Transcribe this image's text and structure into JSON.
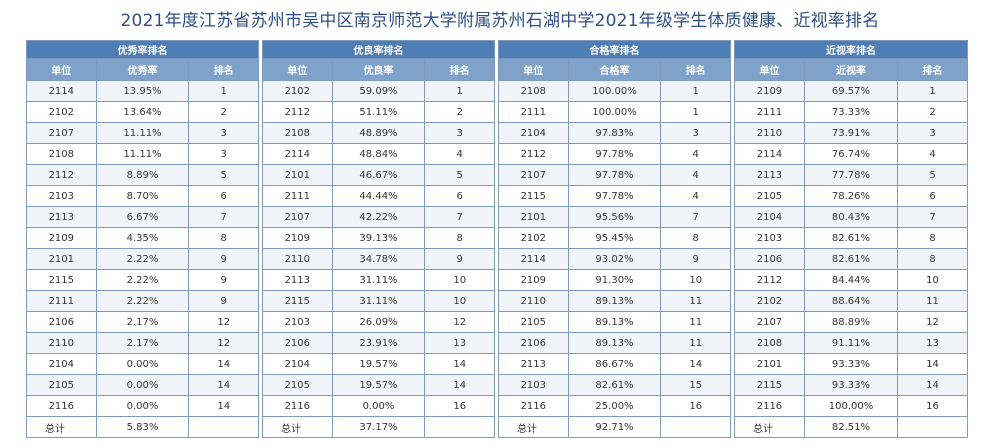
{
  "page_title": "2021年度江苏省苏州市吴中区南京师范大学附属苏州石湖中学2021年级学生体质健康、近视率排名",
  "tables": [
    {
      "title": "优秀率排名",
      "columns": [
        "单位",
        "优秀率",
        "排名"
      ],
      "rows": [
        [
          "2114",
          "13.95%",
          "1"
        ],
        [
          "2102",
          "13.64%",
          "2"
        ],
        [
          "2107",
          "11.11%",
          "3"
        ],
        [
          "2108",
          "11.11%",
          "3"
        ],
        [
          "2112",
          "8.89%",
          "5"
        ],
        [
          "2103",
          "8.70%",
          "6"
        ],
        [
          "2113",
          "6.67%",
          "7"
        ],
        [
          "2109",
          "4.35%",
          "8"
        ],
        [
          "2101",
          "2.22%",
          "9"
        ],
        [
          "2115",
          "2.22%",
          "9"
        ],
        [
          "2111",
          "2.22%",
          "9"
        ],
        [
          "2106",
          "2.17%",
          "12"
        ],
        [
          "2110",
          "2.17%",
          "12"
        ],
        [
          "2104",
          "0.00%",
          "14"
        ],
        [
          "2105",
          "0.00%",
          "14"
        ],
        [
          "2116",
          "0.00%",
          "14"
        ]
      ],
      "total": [
        "总计",
        "5.83%",
        ""
      ]
    },
    {
      "title": "优良率排名",
      "columns": [
        "单位",
        "优良率",
        "排名"
      ],
      "rows": [
        [
          "2102",
          "59.09%",
          "1"
        ],
        [
          "2112",
          "51.11%",
          "2"
        ],
        [
          "2108",
          "48.89%",
          "3"
        ],
        [
          "2114",
          "48.84%",
          "4"
        ],
        [
          "2101",
          "46.67%",
          "5"
        ],
        [
          "2111",
          "44.44%",
          "6"
        ],
        [
          "2107",
          "42.22%",
          "7"
        ],
        [
          "2109",
          "39.13%",
          "8"
        ],
        [
          "2110",
          "34.78%",
          "9"
        ],
        [
          "2113",
          "31.11%",
          "10"
        ],
        [
          "2115",
          "31.11%",
          "10"
        ],
        [
          "2103",
          "26.09%",
          "12"
        ],
        [
          "2106",
          "23.91%",
          "13"
        ],
        [
          "2104",
          "19.57%",
          "14"
        ],
        [
          "2105",
          "19.57%",
          "14"
        ],
        [
          "2116",
          "0.00%",
          "16"
        ]
      ],
      "total": [
        "总计",
        "37.17%",
        ""
      ]
    },
    {
      "title": "合格率排名",
      "columns": [
        "单位",
        "合格率",
        "排名"
      ],
      "rows": [
        [
          "2108",
          "100.00%",
          "1"
        ],
        [
          "2111",
          "100.00%",
          "1"
        ],
        [
          "2104",
          "97.83%",
          "3"
        ],
        [
          "2112",
          "97.78%",
          "4"
        ],
        [
          "2107",
          "97.78%",
          "4"
        ],
        [
          "2115",
          "97.78%",
          "4"
        ],
        [
          "2101",
          "95.56%",
          "7"
        ],
        [
          "2102",
          "95.45%",
          "8"
        ],
        [
          "2114",
          "93.02%",
          "9"
        ],
        [
          "2109",
          "91.30%",
          "10"
        ],
        [
          "2110",
          "89.13%",
          "11"
        ],
        [
          "2105",
          "89.13%",
          "11"
        ],
        [
          "2106",
          "89.13%",
          "11"
        ],
        [
          "2113",
          "86.67%",
          "14"
        ],
        [
          "2103",
          "82.61%",
          "15"
        ],
        [
          "2116",
          "25.00%",
          "16"
        ]
      ],
      "total": [
        "总计",
        "92.71%",
        ""
      ]
    },
    {
      "title": "近视率排名",
      "columns": [
        "单位",
        "近视率",
        "排名"
      ],
      "rows": [
        [
          "2109",
          "69.57%",
          "1"
        ],
        [
          "2111",
          "73.33%",
          "2"
        ],
        [
          "2110",
          "73.91%",
          "3"
        ],
        [
          "2114",
          "76.74%",
          "4"
        ],
        [
          "2113",
          "77.78%",
          "5"
        ],
        [
          "2105",
          "78.26%",
          "6"
        ],
        [
          "2104",
          "80.43%",
          "7"
        ],
        [
          "2103",
          "82.61%",
          "8"
        ],
        [
          "2106",
          "82.61%",
          "8"
        ],
        [
          "2112",
          "84.44%",
          "10"
        ],
        [
          "2102",
          "88.64%",
          "11"
        ],
        [
          "2107",
          "88.89%",
          "12"
        ],
        [
          "2108",
          "91.11%",
          "13"
        ],
        [
          "2101",
          "93.33%",
          "14"
        ],
        [
          "2115",
          "93.33%",
          "14"
        ],
        [
          "2116",
          "100.00%",
          "16"
        ]
      ],
      "total": [
        "总计",
        "82.51%",
        ""
      ]
    }
  ]
}
